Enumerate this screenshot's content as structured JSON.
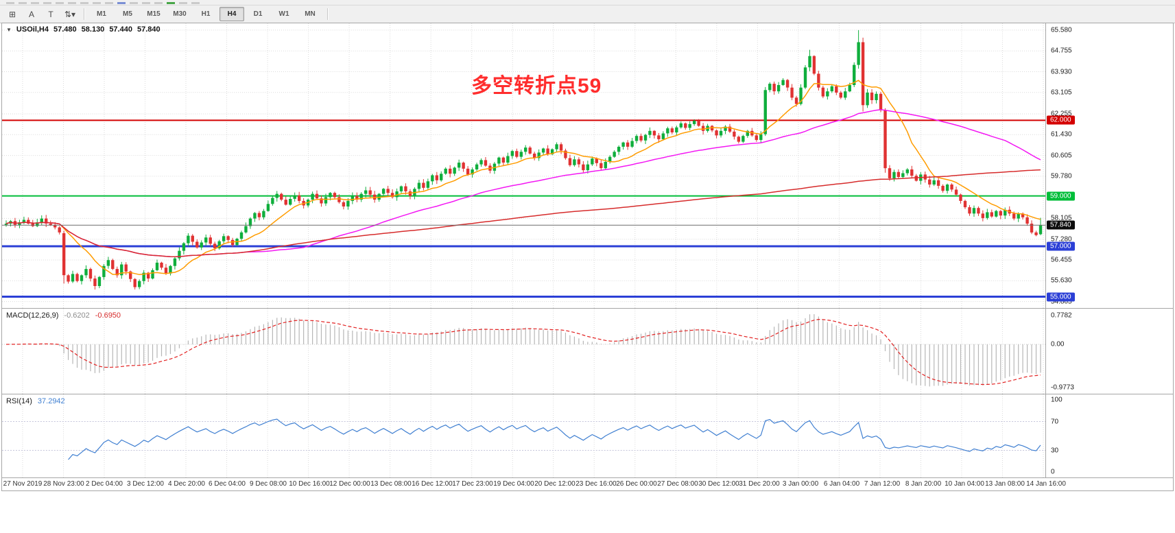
{
  "toolbar": {
    "icon_buttons": [
      {
        "name": "charts-grid-icon",
        "glyph": "⊞"
      },
      {
        "name": "font-a-icon",
        "glyph": "A"
      },
      {
        "name": "text-label-icon",
        "glyph": "T"
      },
      {
        "name": "objects-arrows-icon",
        "glyph": "⇅▾"
      }
    ],
    "timeframes": [
      "M1",
      "M5",
      "M15",
      "M30",
      "H1",
      "H4",
      "D1",
      "W1",
      "MN"
    ],
    "active_timeframe": "H4"
  },
  "chart": {
    "symbol_title": "USOil,H4",
    "ohlc": {
      "open": "57.480",
      "high": "58.130",
      "low": "57.440",
      "close": "57.840"
    },
    "annotation": {
      "text": "多空转折点59",
      "color": "#ff2d2d"
    },
    "price_range": {
      "min": 54.55,
      "max": 65.85
    },
    "axis_ticks": [
      "65.580",
      "64.755",
      "63.930",
      "63.105",
      "62.255",
      "61.430",
      "60.605",
      "59.780",
      "58.105",
      "57.280",
      "56.455",
      "55.630",
      "54.805"
    ],
    "hlines": [
      {
        "value": 62.0,
        "label": "62.000",
        "color": "#d40000",
        "width": 2
      },
      {
        "value": 59.0,
        "label": "59.000",
        "color": "#00bd39",
        "width": 2
      },
      {
        "value": 57.0,
        "label": "57.000",
        "color": "#2b3fd6",
        "width": 3
      },
      {
        "value": 55.0,
        "label": "55.000",
        "color": "#2b3fd6",
        "width": 3
      }
    ],
    "current_price": {
      "value": 57.84,
      "label": "57.840",
      "bg": "#0d0d0d",
      "line_color": "#6b6b6b"
    },
    "moving_averages": [
      {
        "name": "ma-fast",
        "period": 12,
        "color": "#ff9c00"
      },
      {
        "name": "ma-mid",
        "period": 55,
        "color": "#f318f3"
      },
      {
        "name": "ma-slow",
        "period": 200,
        "color": "#d62b2b"
      }
    ],
    "candle_colors": {
      "up": "#0fae3c",
      "down": "#e03232"
    }
  },
  "chart_data": {
    "type": "candlestick",
    "symbol": "USOil",
    "timeframe": "H4",
    "x_labels": [
      "27 Nov 2019",
      "28 Nov 23:00",
      "2 Dec 04:00",
      "3 Dec 12:00",
      "4 Dec 20:00",
      "6 Dec 04:00",
      "9 Dec 08:00",
      "10 Dec 16:00",
      "12 Dec 00:00",
      "13 Dec 08:00",
      "16 Dec 12:00",
      "17 Dec 23:00",
      "19 Dec 04:00",
      "20 Dec 12:00",
      "23 Dec 16:00",
      "26 Dec 00:00",
      "27 Dec 08:00",
      "30 Dec 12:00",
      "31 Dec 20:00",
      "3 Jan 00:00",
      "6 Jan 04:00",
      "7 Jan 12:00",
      "8 Jan 20:00",
      "10 Jan 04:00",
      "13 Jan 08:00",
      "14 Jan 16:00"
    ],
    "first_open": 57.85,
    "closes": [
      57.9,
      58.0,
      57.85,
      57.95,
      58.05,
      57.9,
      57.8,
      57.95,
      58.1,
      57.9,
      57.85,
      57.75,
      57.55,
      55.85,
      55.6,
      55.9,
      55.62,
      55.85,
      56.1,
      55.72,
      55.42,
      55.78,
      56.22,
      56.45,
      56.1,
      55.85,
      56.28,
      56.0,
      55.7,
      55.38,
      55.62,
      55.95,
      55.72,
      56.05,
      56.35,
      56.15,
      55.92,
      56.22,
      56.52,
      56.82,
      57.12,
      57.42,
      57.18,
      56.95,
      57.15,
      57.35,
      57.1,
      56.92,
      57.2,
      57.4,
      57.25,
      57.05,
      57.3,
      57.55,
      57.8,
      58.1,
      58.32,
      58.15,
      58.4,
      58.68,
      58.92,
      59.08,
      58.85,
      58.65,
      58.88,
      59.02,
      58.8,
      58.62,
      58.85,
      59.08,
      58.9,
      58.7,
      58.95,
      59.12,
      58.95,
      58.75,
      58.58,
      58.8,
      59.0,
      58.85,
      59.08,
      59.22,
      59.05,
      58.85,
      59.08,
      59.28,
      59.12,
      58.95,
      59.18,
      59.38,
      59.18,
      59.0,
      59.28,
      59.52,
      59.32,
      59.58,
      59.82,
      59.62,
      59.88,
      60.08,
      59.88,
      60.12,
      60.32,
      60.08,
      59.85,
      60.05,
      60.25,
      60.42,
      60.2,
      60.0,
      60.28,
      60.52,
      60.32,
      60.58,
      60.78,
      60.55,
      60.75,
      60.92,
      60.68,
      60.5,
      60.72,
      60.88,
      60.65,
      60.85,
      61.05,
      60.8,
      60.5,
      60.22,
      60.45,
      60.25,
      60.02,
      60.25,
      60.48,
      60.3,
      60.1,
      60.35,
      60.55,
      60.75,
      60.95,
      61.12,
      60.95,
      61.18,
      61.38,
      61.2,
      61.42,
      61.58,
      61.4,
      61.25,
      61.48,
      61.68,
      61.52,
      61.72,
      61.88,
      61.7,
      61.85,
      61.98,
      61.78,
      61.58,
      61.78,
      61.6,
      61.4,
      61.58,
      61.75,
      61.55,
      61.35,
      61.15,
      61.38,
      61.58,
      61.4,
      61.22,
      61.45,
      63.2,
      63.45,
      63.15,
      63.4,
      63.6,
      63.3,
      62.9,
      62.65,
      63.3,
      64.1,
      64.55,
      63.85,
      63.3,
      62.95,
      63.15,
      63.35,
      63.1,
      62.9,
      63.15,
      63.4,
      64.2,
      65.1,
      62.6,
      63.1,
      62.8,
      63.05,
      62.4,
      60.1,
      59.7,
      59.95,
      59.75,
      59.9,
      60.05,
      59.8,
      59.6,
      59.85,
      59.65,
      59.45,
      59.62,
      59.4,
      59.2,
      59.45,
      59.25,
      59.05,
      58.8,
      58.55,
      58.3,
      58.52,
      58.3,
      58.12,
      58.35,
      58.18,
      58.4,
      58.22,
      58.45,
      58.3,
      58.1,
      58.3,
      58.15,
      57.9,
      57.55,
      57.44,
      57.84
    ],
    "overrides": {
      "13": [
        57.52,
        57.62,
        55.52,
        55.85
      ],
      "171": [
        61.45,
        63.32,
        61.38,
        63.2
      ],
      "181": [
        64.1,
        64.8,
        63.95,
        64.55
      ],
      "192": [
        64.2,
        65.58,
        64.05,
        65.1
      ],
      "193": [
        65.1,
        65.28,
        62.35,
        62.6
      ],
      "198": [
        62.4,
        62.48,
        59.92,
        60.1
      ],
      "233": [
        57.48,
        58.13,
        57.44,
        57.84
      ]
    }
  },
  "macd": {
    "name": "MACD(12,26,9)",
    "values": [
      {
        "text": "-0.6202",
        "color": "#8c8c8c"
      },
      {
        "text": "-0.6950",
        "color": "#d62b2b"
      }
    ],
    "params": {
      "fast": 12,
      "slow": 26,
      "signal": 9
    },
    "axis_labels": [
      "0.7782",
      "0.00",
      "-0.9773"
    ],
    "histogram_color": "#b6b6b6",
    "signal_color": "#e22020"
  },
  "rsi": {
    "name": "RSI(14)",
    "value": "37.2942",
    "period": 14,
    "axis_labels": [
      "100",
      "70",
      "30",
      "0"
    ],
    "levels": [
      70,
      30
    ],
    "line_color": "#3f7fd1"
  }
}
